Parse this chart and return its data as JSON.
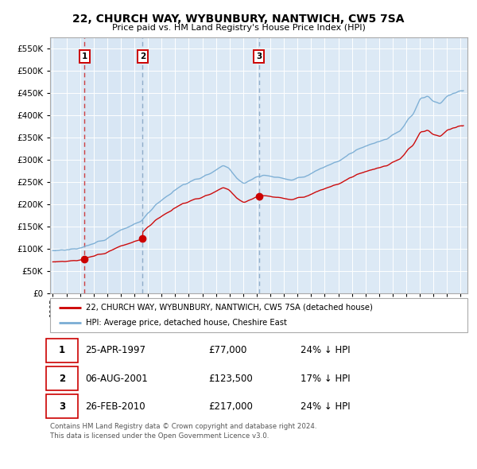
{
  "title": "22, CHURCH WAY, WYBUNBURY, NANTWICH, CW5 7SA",
  "subtitle": "Price paid vs. HM Land Registry's House Price Index (HPI)",
  "ylim": [
    0,
    575000
  ],
  "yticks": [
    0,
    50000,
    100000,
    150000,
    200000,
    250000,
    300000,
    350000,
    400000,
    450000,
    500000,
    550000
  ],
  "ytick_labels": [
    "£0",
    "£50K",
    "£100K",
    "£150K",
    "£200K",
    "£250K",
    "£300K",
    "£350K",
    "£400K",
    "£450K",
    "£500K",
    "£550K"
  ],
  "xlim_start": 1994.8,
  "xlim_end": 2025.5,
  "plot_bg_color": "#dce9f5",
  "grid_color": "#ffffff",
  "sale1_date": 1997.32,
  "sale1_price": 77000,
  "sale2_date": 2001.6,
  "sale2_price": 123500,
  "sale3_date": 2010.15,
  "sale3_price": 217000,
  "red_line_color": "#cc0000",
  "blue_line_color": "#7aadd4",
  "marker_color": "#cc0000",
  "vline1_color": "#cc2222",
  "vline2_color": "#7799bb",
  "vline3_color": "#7799bb",
  "legend_label_red": "22, CHURCH WAY, WYBUNBURY, NANTWICH, CW5 7SA (detached house)",
  "legend_label_blue": "HPI: Average price, detached house, Cheshire East",
  "table_rows": [
    [
      "1",
      "25-APR-1997",
      "£77,000",
      "24% ↓ HPI"
    ],
    [
      "2",
      "06-AUG-2001",
      "£123,500",
      "17% ↓ HPI"
    ],
    [
      "3",
      "26-FEB-2010",
      "£217,000",
      "24% ↓ HPI"
    ]
  ],
  "footnote": "Contains HM Land Registry data © Crown copyright and database right 2024.\nThis data is licensed under the Open Government Licence v3.0."
}
